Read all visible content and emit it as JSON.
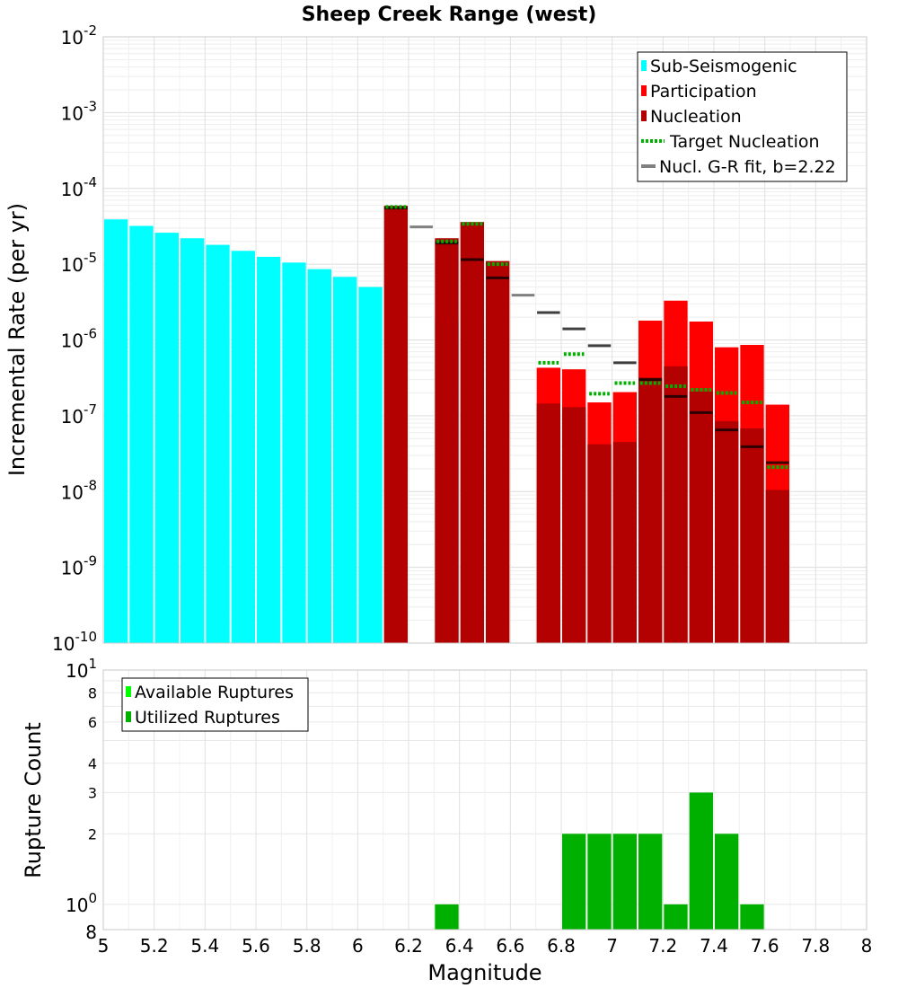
{
  "chart_data": [
    {
      "type": "bar",
      "title": "Sheep Creek Range (west)",
      "xlabel": "",
      "ylabel": "Incremental Rate (per yr)",
      "yscale": "log",
      "ylim": [
        1e-10,
        0.01
      ],
      "xlim": [
        5,
        8
      ],
      "yticks": [
        {
          "base": "10",
          "exp": "-2"
        },
        {
          "base": "10",
          "exp": "-3"
        },
        {
          "base": "10",
          "exp": "-4"
        },
        {
          "base": "10",
          "exp": "-5"
        },
        {
          "base": "10",
          "exp": "-6"
        },
        {
          "base": "10",
          "exp": "-7"
        },
        {
          "base": "10",
          "exp": "-8"
        },
        {
          "base": "10",
          "exp": "-9"
        },
        {
          "base": "10",
          "exp": "-10"
        }
      ],
      "bin_width": 0.1,
      "legend_position": "top-right",
      "legend": [
        {
          "label": "Sub-Seismogenic",
          "color": "#00ffff",
          "style": "box"
        },
        {
          "label": "Participation",
          "color": "#ff0000",
          "style": "box"
        },
        {
          "label": "Nucleation",
          "color": "#b30000",
          "style": "box"
        },
        {
          "label": "Target Nucleation",
          "color": "#00b000",
          "style": "dotted"
        },
        {
          "label": "Nucl. G-R fit, b=2.22",
          "color": "#808080",
          "style": "line"
        }
      ],
      "series": [
        {
          "name": "Sub-Seismogenic",
          "x": [
            5.05,
            5.15,
            5.25,
            5.35,
            5.45,
            5.55,
            5.65,
            5.75,
            5.85,
            5.95,
            6.05,
            6.35
          ],
          "values": [
            3.9e-05,
            3.2e-05,
            2.6e-05,
            2.2e-05,
            1.8e-05,
            1.5e-05,
            1.25e-05,
            1.05e-05,
            8.6e-06,
            6.8e-06,
            5e-06,
            1.9e-06
          ]
        },
        {
          "name": "Participation",
          "x": [
            6.75,
            6.85,
            6.95,
            7.05,
            7.15,
            7.25,
            7.35,
            7.45,
            7.55,
            7.65
          ],
          "values": [
            4.3e-07,
            4.1e-07,
            1.5e-07,
            2.05e-07,
            1.8e-06,
            3.3e-06,
            1.75e-06,
            8e-07,
            8.6e-07,
            1.4e-07
          ]
        },
        {
          "name": "Nucleation",
          "x": [
            6.15,
            6.35,
            6.45,
            6.55,
            6.75,
            6.85,
            6.95,
            7.05,
            7.15,
            7.25,
            7.35,
            7.45,
            7.55,
            7.65
          ],
          "values": [
            5.9e-05,
            2.2e-05,
            3.6e-05,
            1.1e-05,
            1.45e-07,
            1.3e-07,
            4.2e-08,
            4.5e-08,
            3.2e-07,
            4.5e-07,
            2.1e-07,
            8.5e-08,
            6.8e-08,
            1.05e-08
          ]
        },
        {
          "name": "Target Nucleation",
          "x": [
            6.15,
            6.35,
            6.45,
            6.55,
            6.75,
            6.85,
            6.95,
            7.05,
            7.15,
            7.25,
            7.35,
            7.45,
            7.55,
            7.65
          ],
          "values": [
            5.7e-05,
            2e-05,
            3.4e-05,
            1e-05,
            5e-07,
            6.5e-07,
            1.95e-07,
            2.7e-07,
            2.7e-07,
            2.45e-07,
            2.2e-07,
            2e-07,
            1.5e-07,
            2.1e-08
          ]
        },
        {
          "name": "Nucl. G-R fit, b=2.22",
          "x": [
            6.15,
            6.25,
            6.35,
            6.45,
            6.55,
            6.65,
            6.75,
            6.85,
            6.95,
            7.05,
            7.15,
            7.25,
            7.35,
            7.45,
            7.55,
            7.65
          ],
          "values": [
            5.5e-05,
            3.1e-05,
            1.9e-05,
            1.15e-05,
            6.6e-06,
            3.9e-06,
            2.3e-06,
            1.4e-06,
            8.4e-07,
            5e-07,
            3e-07,
            1.8e-07,
            1.1e-07,
            6.5e-08,
            3.9e-08,
            2.4e-08
          ]
        }
      ],
      "gr_colors": {
        "gray": "#808080",
        "black": "#000000"
      }
    },
    {
      "type": "bar",
      "title": "",
      "xlabel": "Magnitude",
      "ylabel": "Rupture Count",
      "yscale": "log",
      "ylim": [
        0.78,
        10
      ],
      "xlim": [
        5,
        8
      ],
      "xticks": [
        "5",
        "5.2",
        "5.4",
        "5.6",
        "5.8",
        "6",
        "6.2",
        "6.4",
        "6.6",
        "6.8",
        "7",
        "7.2",
        "7.4",
        "7.6",
        "7.8",
        "8"
      ],
      "yticks_major": [
        {
          "base": "10",
          "exp": "1",
          "value": 10
        },
        {
          "base": "10",
          "exp": "0",
          "value": 1
        }
      ],
      "yticks_minor": [
        {
          "label": "8",
          "value": 8
        },
        {
          "label": "6",
          "value": 6
        },
        {
          "label": "4",
          "value": 4
        },
        {
          "label": "3",
          "value": 3
        },
        {
          "label": "2",
          "value": 2
        }
      ],
      "bottom_label": "8",
      "legend_position": "top-left",
      "legend": [
        {
          "label": "Available Ruptures",
          "color": "#00ff00",
          "style": "box"
        },
        {
          "label": "Utilized Ruptures",
          "color": "#00b000",
          "style": "box"
        }
      ],
      "series": [
        {
          "name": "Utilized Ruptures",
          "x": [
            6.35,
            6.85,
            6.95,
            7.05,
            7.15,
            7.25,
            7.35,
            7.45,
            7.55
          ],
          "values": [
            1,
            2,
            2,
            2,
            2,
            1,
            3,
            2,
            1
          ]
        }
      ]
    }
  ]
}
